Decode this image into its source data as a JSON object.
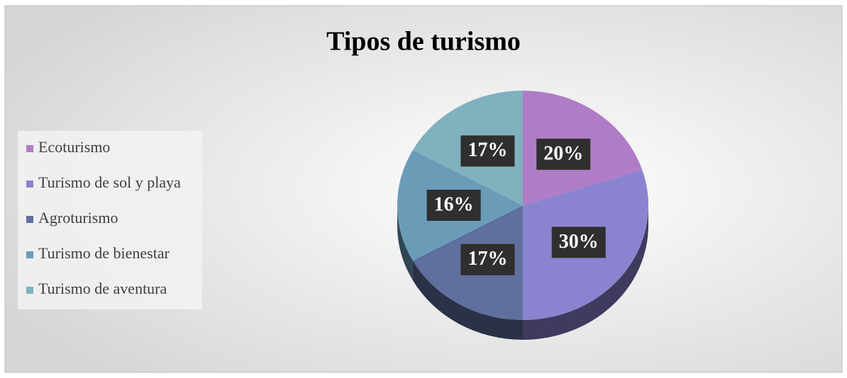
{
  "chart_data": {
    "type": "pie",
    "title": "Tipos de turismo",
    "categories": [
      "Ecoturismo",
      "Turismo de sol y playa",
      "Agroturismo",
      "Turismo de bienestar",
      "Turismo de aventura"
    ],
    "values": [
      20,
      30,
      17,
      16,
      17
    ],
    "value_labels": [
      "20%",
      "30%",
      "17%",
      "16%",
      "17%"
    ],
    "colors": [
      "#b07cc6",
      "#8a84d0",
      "#5f6f9e",
      "#6a9cb8",
      "#80b1be"
    ],
    "legend": "left"
  }
}
